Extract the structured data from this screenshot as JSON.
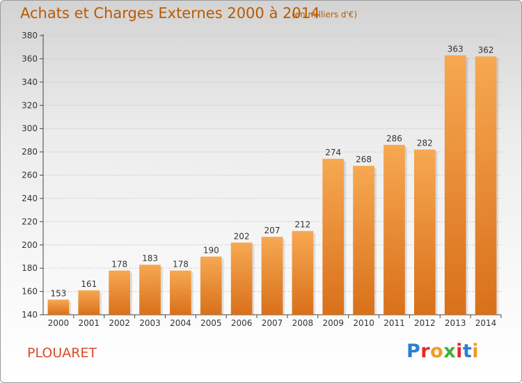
{
  "header": {
    "title": "Achats et Charges Externes 2000 à 2014",
    "subtitle": "(en milliers d'€)"
  },
  "footer": {
    "commune": "PLOUARET",
    "logo_text": "Proxiti",
    "logo_colors": [
      "#2a7fd4",
      "#e8262a",
      "#f39a1f",
      "#3fae3a",
      "#e8262a",
      "#2a7fd4",
      "#f39a1f"
    ]
  },
  "chart_data": {
    "type": "bar",
    "title": "Achats et Charges Externes 2000 à 2014",
    "subtitle": "(en milliers d'€)",
    "xlabel": "",
    "ylabel": "",
    "categories": [
      "2000",
      "2001",
      "2002",
      "2003",
      "2004",
      "2005",
      "2006",
      "2007",
      "2008",
      "2009",
      "2010",
      "2011",
      "2012",
      "2013",
      "2014"
    ],
    "values": [
      153,
      161,
      178,
      183,
      178,
      190,
      202,
      207,
      212,
      274,
      268,
      286,
      282,
      363,
      362
    ],
    "ylim": [
      140,
      380
    ],
    "yticks": [
      140,
      160,
      180,
      200,
      220,
      240,
      260,
      280,
      300,
      320,
      340,
      360,
      380
    ],
    "grid": "dashed-horizontal",
    "bar_color_top": "#f7a852",
    "bar_color_bottom": "#d9701a",
    "data_labels": true
  }
}
